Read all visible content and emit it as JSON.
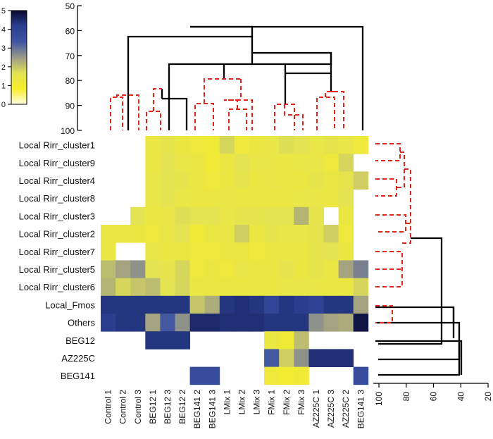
{
  "chart_data": {
    "type": "heatmap",
    "title": "",
    "columns": [
      "Control 1",
      "Control 2",
      "Control 3",
      "BEG12 1",
      "BEG12 3",
      "BEG12 2",
      "BEG141 2",
      "BEG141 3",
      "LMix 1",
      "LMix 2",
      "LMix 3",
      "FMix 1",
      "FMix 2",
      "FMix 3",
      "AZ225C 1",
      "AZ225C 3",
      "AZ225C 2",
      "BEG141 3"
    ],
    "rows": [
      "Local Rirr_cluster1",
      "Local Rirr_cluster9",
      "Local Rirr_cluster4",
      "Local Rirr_cluster8",
      "Local Rirr_cluster3",
      "Local Rirr_cluster2",
      "Local Rirr_cluster7",
      "Local Rirr_cluster5",
      "Local Rirr_cluster6",
      "Local_Fmos",
      "Others",
      "BEG12",
      "AZ225C",
      "BEG141"
    ],
    "values": [
      [
        null,
        null,
        null,
        1.3,
        1.5,
        1.3,
        1.2,
        1.1,
        1.8,
        1.2,
        1.3,
        1.4,
        1.7,
        1.6,
        1.4,
        1.5,
        1.4,
        1.2
      ],
      [
        null,
        null,
        null,
        1.3,
        1.6,
        1.4,
        1.3,
        1.1,
        1.3,
        1.6,
        1.4,
        1.4,
        1.3,
        1.4,
        1.4,
        1.2,
        1.8,
        null
      ],
      [
        null,
        null,
        null,
        1.4,
        1.6,
        1.5,
        1.3,
        1.2,
        1.3,
        1.5,
        1.3,
        1.4,
        1.3,
        1.3,
        1.5,
        1.3,
        1.5,
        1.9
      ],
      [
        null,
        null,
        null,
        1.4,
        1.6,
        1.4,
        1.3,
        1.3,
        1.4,
        1.3,
        1.3,
        1.3,
        1.3,
        1.4,
        1.4,
        1.3,
        1.6,
        null
      ],
      [
        null,
        null,
        1.6,
        1.3,
        1.4,
        1.7,
        1.6,
        1.6,
        1.4,
        1.5,
        1.5,
        1.6,
        1.6,
        2.2,
        1.5,
        null,
        1.3,
        null
      ],
      [
        1.3,
        1.3,
        1.3,
        1.2,
        1.4,
        1.6,
        1.1,
        1.3,
        1.4,
        1.9,
        1.3,
        1.5,
        1.4,
        1.4,
        1.5,
        1.9,
        1.2,
        null
      ],
      [
        1.3,
        null,
        null,
        1.4,
        1.3,
        1.3,
        1.2,
        1.2,
        1.3,
        1.3,
        1.2,
        1.3,
        1.3,
        1.3,
        1.5,
        1.6,
        1.3,
        null
      ],
      [
        2.1,
        2.4,
        2.6,
        1.6,
        1.5,
        1.8,
        1.2,
        1.3,
        1.2,
        1.4,
        1.3,
        1.3,
        1.5,
        1.3,
        1.5,
        1.3,
        2.4,
        2.8
      ],
      [
        2.2,
        1.8,
        2.0,
        2.1,
        1.6,
        1.8,
        1.3,
        1.3,
        1.3,
        1.3,
        1.3,
        1.3,
        1.4,
        1.4,
        1.4,
        1.3,
        1.3,
        1.8
      ],
      [
        4.3,
        4.3,
        4.3,
        4.3,
        4.3,
        4.3,
        2.0,
        2.3,
        4.3,
        4.4,
        4.3,
        3.9,
        4.3,
        4.2,
        4.0,
        4.3,
        4.3,
        2.4
      ],
      [
        4.2,
        4.3,
        4.3,
        2.4,
        3.3,
        2.6,
        4.5,
        4.5,
        4.4,
        4.4,
        4.4,
        4.3,
        4.3,
        4.3,
        2.6,
        2.4,
        2.3,
        4.8
      ],
      [
        null,
        null,
        null,
        4.3,
        4.3,
        4.3,
        null,
        null,
        null,
        null,
        null,
        1.3,
        1.1,
        2.1,
        null,
        null,
        null,
        null
      ],
      [
        null,
        null,
        null,
        null,
        null,
        null,
        null,
        null,
        null,
        null,
        null,
        3.3,
        1.9,
        2.6,
        4.4,
        4.4,
        4.4,
        null
      ],
      [
        null,
        null,
        null,
        null,
        null,
        null,
        3.7,
        3.7,
        null,
        null,
        null,
        1.2,
        1.0,
        1.1,
        null,
        null,
        null,
        3.7
      ]
    ],
    "color_scale": {
      "min": 0,
      "max": 5,
      "ticks": [
        "0",
        "1",
        "2",
        "3",
        "4",
        "5"
      ],
      "colors": [
        "#fffde0",
        "#f7ee2a",
        "#e2e254",
        "#9a9a88",
        "#3e55a2",
        "#2b3f92",
        "#08082a"
      ]
    },
    "top_axis": {
      "ticks": [
        "50",
        "60",
        "70",
        "80",
        "90",
        "100"
      ],
      "range": [
        50,
        100
      ]
    },
    "right_axis": {
      "ticks": [
        "100",
        "80",
        "60",
        "40",
        "20"
      ],
      "range": [
        100,
        20
      ]
    }
  }
}
